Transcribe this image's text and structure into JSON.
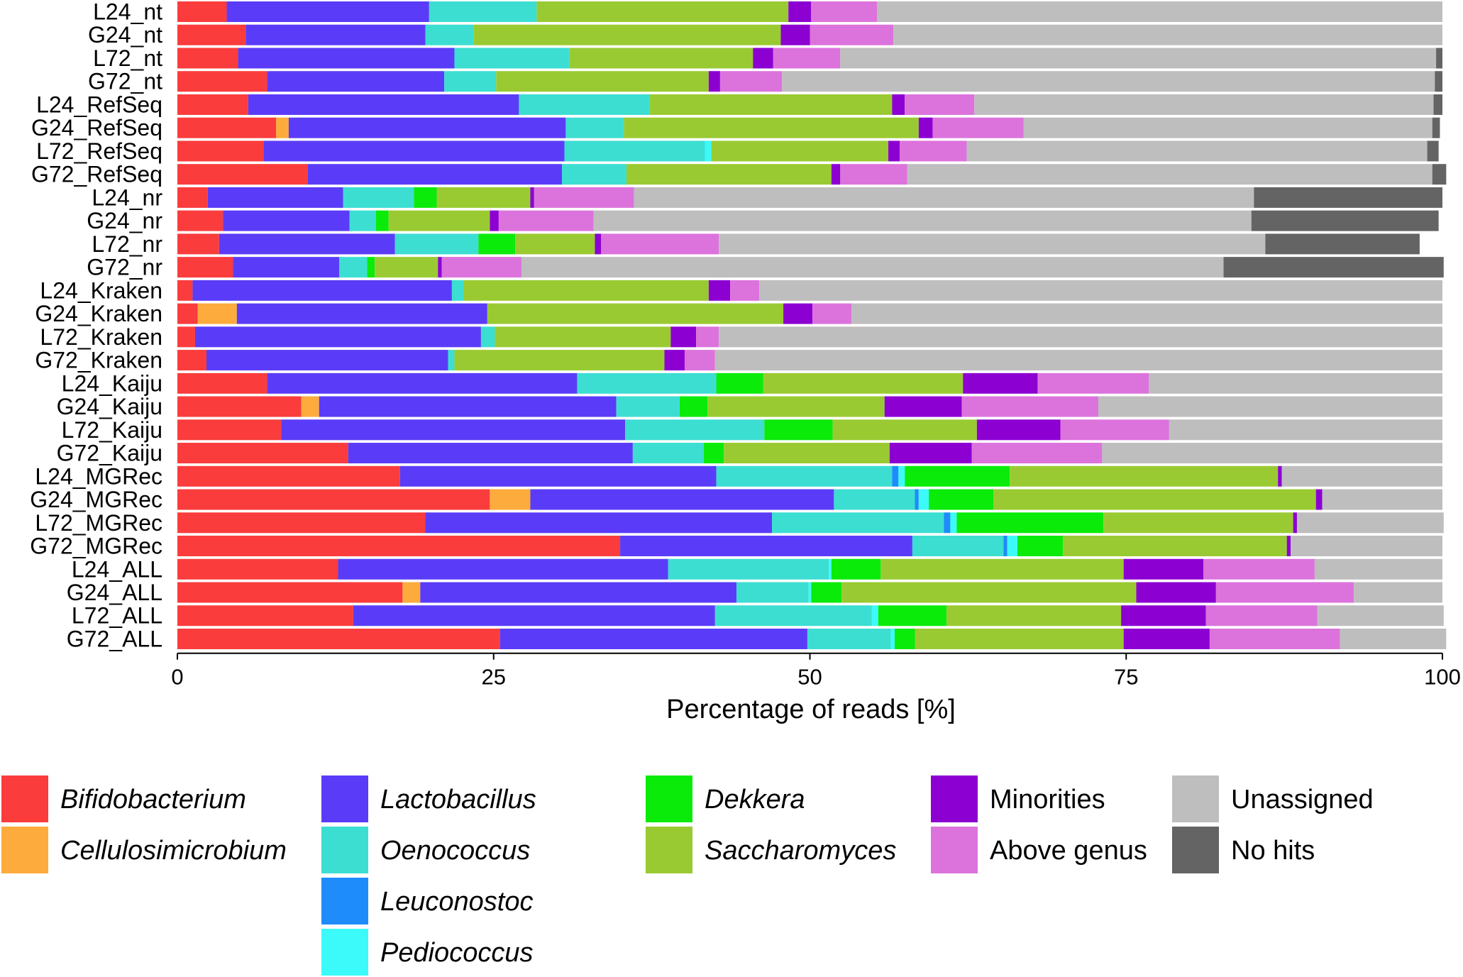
{
  "chart_data": {
    "type": "bar",
    "orientation": "horizontal",
    "stacked": true,
    "xlabel": "Percentage of reads [%]",
    "xlim": [
      0,
      100
    ],
    "xticks": [
      0,
      25,
      50,
      75,
      100
    ],
    "grid": false,
    "legend_position": "bottom",
    "categories": [
      "L24_nt",
      "G24_nt",
      "L72_nt",
      "G72_nt",
      "L24_RefSeq",
      "G24_RefSeq",
      "L72_RefSeq",
      "G72_RefSeq",
      "L24_nr",
      "G24_nr",
      "L72_nr",
      "G72_nr",
      "L24_Kraken",
      "G24_Kraken",
      "L72_Kraken",
      "G72_Kraken",
      "L24_Kaiju",
      "G24_Kaiju",
      "L72_Kaiju",
      "G72_Kaiju",
      "L24_MGRec",
      "G24_MGRec",
      "L72_MGRec",
      "G72_MGRec",
      "L24_ALL",
      "G24_ALL",
      "L72_ALL",
      "G72_ALL"
    ],
    "series": [
      {
        "name": "Bifidobacterium",
        "italic": true,
        "color": "#fa3c3c",
        "values": [
          3.9,
          5.4,
          4.8,
          7.1,
          5.6,
          7.8,
          6.8,
          10.3,
          2.4,
          3.6,
          3.3,
          4.4,
          1.2,
          1.6,
          1.4,
          2.3,
          7.1,
          9.8,
          8.2,
          13.5,
          17.6,
          24.7,
          19.6,
          35.0,
          12.7,
          17.8,
          13.9,
          25.5
        ]
      },
      {
        "name": "Cellulosimicrobium",
        "italic": true,
        "color": "#fcab3c",
        "values": [
          0,
          0,
          0,
          0,
          0,
          1.0,
          0,
          0,
          0,
          0,
          0,
          0,
          0,
          3.1,
          0,
          0,
          0,
          1.4,
          0,
          0,
          0,
          3.2,
          0,
          0,
          0,
          1.4,
          0,
          0
        ]
      },
      {
        "name": "Lactobacillus",
        "italic": true,
        "color": "#5a3cf8",
        "values": [
          16.0,
          14.2,
          17.1,
          14.0,
          21.4,
          21.9,
          23.8,
          20.1,
          10.7,
          10.0,
          13.9,
          8.4,
          20.5,
          19.8,
          22.6,
          19.1,
          24.5,
          23.5,
          27.2,
          22.5,
          25.0,
          24.0,
          27.4,
          23.1,
          26.1,
          25.0,
          28.6,
          24.3
        ]
      },
      {
        "name": "Oenococcus",
        "italic": true,
        "color": "#3cded2",
        "values": [
          8.5,
          3.8,
          9.1,
          4.1,
          10.3,
          4.6,
          11.1,
          5.1,
          5.6,
          2.1,
          6.6,
          2.2,
          0.9,
          0,
          1.1,
          0.5,
          11.0,
          5.0,
          11.0,
          5.6,
          13.9,
          6.4,
          13.6,
          7.2,
          12.7,
          5.7,
          12.4,
          6.6
        ]
      },
      {
        "name": "Leuconostoc",
        "italic": true,
        "color": "#1e8cfa",
        "values": [
          0,
          0,
          0,
          0,
          0,
          0,
          0,
          0,
          0,
          0,
          0,
          0,
          0,
          0,
          0,
          0,
          0,
          0,
          0,
          0,
          0.5,
          0.3,
          0.5,
          0.3,
          0,
          0,
          0,
          0
        ]
      },
      {
        "name": "Pediococcus",
        "italic": true,
        "color": "#3cfafa",
        "values": [
          0,
          0,
          0,
          0,
          0,
          0,
          0.5,
          0,
          0,
          0,
          0,
          0,
          0,
          0,
          0,
          0,
          0,
          0,
          0,
          0,
          0.5,
          0.8,
          0.5,
          0.8,
          0.2,
          0.2,
          0.5,
          0.3
        ]
      },
      {
        "name": "Dekkera",
        "italic": true,
        "color": "#0aeb0a",
        "values": [
          0,
          0,
          0,
          0,
          0,
          0,
          0,
          0,
          1.8,
          1.0,
          2.9,
          0.6,
          0,
          0,
          0,
          0,
          3.7,
          2.2,
          5.4,
          1.6,
          8.3,
          5.1,
          11.6,
          3.6,
          3.9,
          2.4,
          5.4,
          1.6
        ]
      },
      {
        "name": "Saccharomyces",
        "italic": true,
        "color": "#9aca32",
        "values": [
          19.9,
          24.3,
          14.5,
          16.8,
          19.2,
          23.3,
          14.0,
          16.2,
          7.4,
          8.0,
          6.3,
          5.0,
          19.4,
          23.4,
          13.9,
          16.6,
          15.8,
          14.0,
          11.4,
          13.1,
          21.2,
          25.5,
          15.0,
          17.7,
          19.2,
          23.3,
          13.8,
          16.5
        ]
      },
      {
        "name": "Minorities",
        "italic": false,
        "color": "#8c00d2",
        "values": [
          1.8,
          2.3,
          1.6,
          0.9,
          1.0,
          1.1,
          0.9,
          0.7,
          0.3,
          0.7,
          0.5,
          0.3,
          1.7,
          2.3,
          2.0,
          1.6,
          5.9,
          6.1,
          6.6,
          6.5,
          0.3,
          0.5,
          0.3,
          0.3,
          6.3,
          6.3,
          6.7,
          6.8
        ]
      },
      {
        "name": "Above genus",
        "italic": false,
        "color": "#dc73dc",
        "values": [
          5.2,
          6.6,
          5.3,
          4.9,
          5.5,
          7.2,
          5.3,
          5.3,
          7.9,
          7.5,
          9.3,
          6.3,
          2.3,
          3.1,
          1.8,
          2.4,
          8.8,
          10.8,
          8.6,
          10.3,
          0,
          0,
          0,
          0,
          8.8,
          10.9,
          8.8,
          10.3
        ]
      },
      {
        "name": "Unassigned",
        "italic": false,
        "color": "#bebebe",
        "values": [
          44.7,
          43.4,
          47.1,
          51.6,
          36.3,
          32.3,
          36.4,
          41.5,
          49.0,
          52.0,
          43.2,
          55.5,
          54.0,
          46.7,
          57.2,
          57.5,
          23.2,
          27.2,
          21.6,
          26.9,
          12.7,
          9.5,
          11.6,
          12.0,
          10.1,
          7.0,
          10.0,
          8.4
        ]
      },
      {
        "name": "No hits",
        "italic": false,
        "color": "#646464",
        "values": [
          0,
          0,
          0.5,
          0.6,
          0.7,
          0.6,
          0.9,
          1.1,
          14.9,
          14.8,
          12.2,
          17.4,
          0,
          0,
          0,
          0,
          0,
          0,
          0,
          0,
          0,
          0,
          0,
          0,
          0,
          0,
          0,
          0
        ]
      }
    ]
  }
}
